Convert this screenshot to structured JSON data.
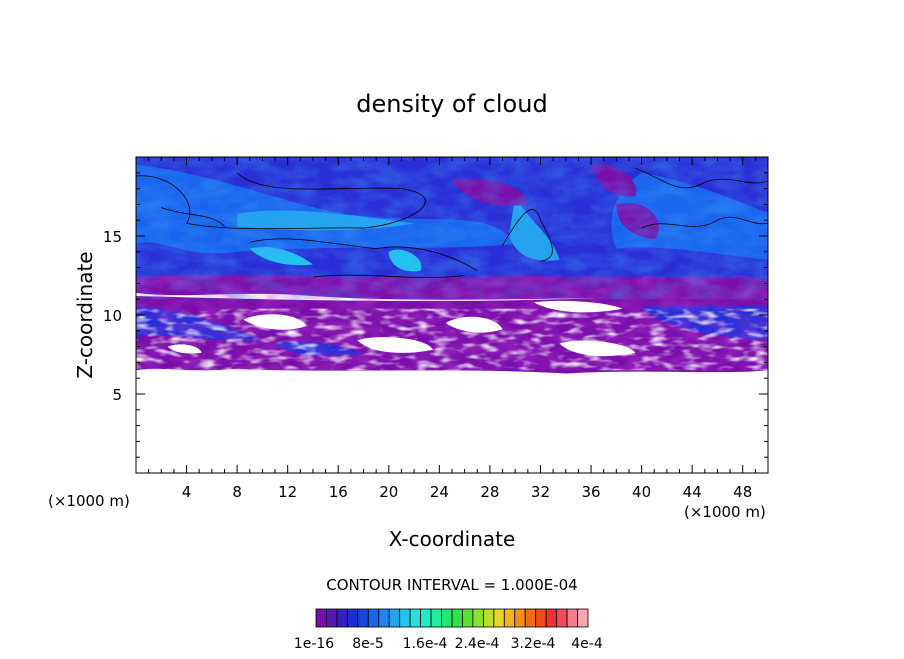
{
  "chart_data": {
    "type": "heatmap",
    "title": "density of cloud",
    "xlabel": "X-coordinate",
    "ylabel": "Z-coordinate",
    "x_unit_label": "(×1000 m)",
    "y_unit_label": "(×1000 m)",
    "xlim": [
      0,
      50
    ],
    "ylim": [
      0,
      20
    ],
    "x_ticks": [
      4,
      8,
      12,
      16,
      20,
      24,
      28,
      32,
      36,
      40,
      44,
      48
    ],
    "y_ticks": [
      5,
      10,
      15
    ],
    "contour_interval_text": "CONTOUR INTERVAL = 1.000E-04",
    "colorbar_labels": [
      "1e-16",
      "8e-5",
      "1.6e-4",
      "2.4e-4",
      "3.2e-4",
      "4e-4"
    ],
    "colorbar_colors": [
      "#7a0eaa",
      "#5a16b4",
      "#3420be",
      "#1d2ed0",
      "#1448e0",
      "#1a64ee",
      "#2084f0",
      "#20a4ee",
      "#22c4ee",
      "#22e0e0",
      "#22ecc4",
      "#22ee9c",
      "#22e870",
      "#2ee04a",
      "#58e032",
      "#8ce030",
      "#bcdc2c",
      "#e6d426",
      "#f0b41e",
      "#f09218",
      "#f06e14",
      "#f04c18",
      "#f03030",
      "#f04c5a",
      "#f27e8c",
      "#f6a6ae"
    ],
    "cloud_base_km": 6.5,
    "cloud_top_km": 20
  }
}
